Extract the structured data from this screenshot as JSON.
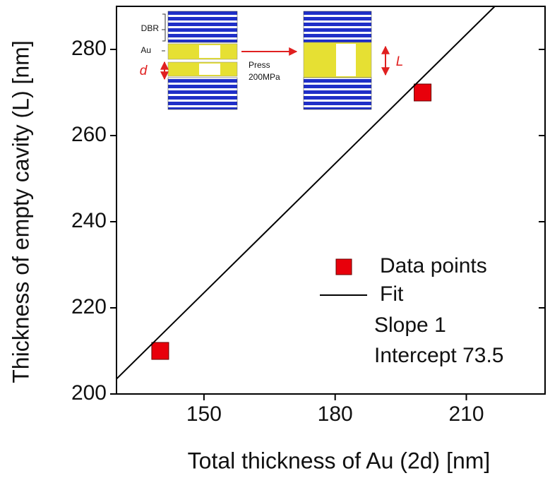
{
  "chart_data": {
    "type": "scatter",
    "xlabel": "Total thickness of Au (2d) [nm]",
    "ylabel": "Thickness of empty cavity (L) [nm]",
    "xlim": [
      130,
      228
    ],
    "ylim": [
      200,
      290
    ],
    "xticks": [
      150,
      180,
      210
    ],
    "yticks": [
      200,
      220,
      240,
      260,
      280
    ],
    "series": [
      {
        "name": "Data points",
        "style": "markers",
        "color": "#e8000b",
        "x": [
          140,
          200
        ],
        "values": [
          210,
          270
        ]
      },
      {
        "name": "Fit",
        "style": "line",
        "color": "#000000",
        "x": [
          130,
          216.5
        ],
        "values": [
          203.5,
          290
        ]
      }
    ],
    "annotations": [
      "Slope 1",
      "Intercept 73.5"
    ],
    "inset": {
      "dbr": "DBR",
      "au": "Au",
      "d": "d",
      "press": "Press",
      "pressure": "200MPa",
      "L": "L"
    }
  }
}
